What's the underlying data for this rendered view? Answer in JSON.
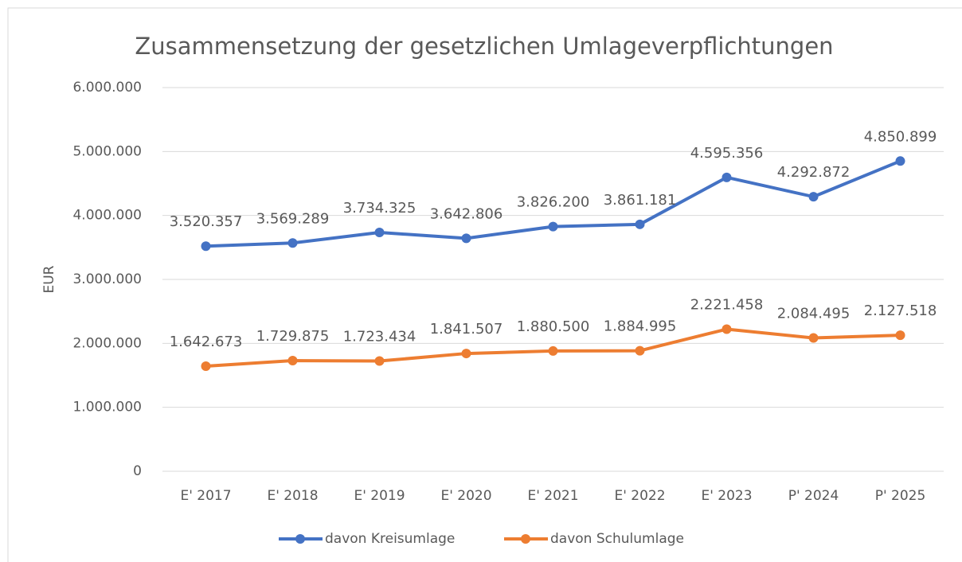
{
  "chart_data": {
    "type": "line",
    "title": "Zusammensetzung der gesetzlichen Umlageverpflichtungen",
    "y_label": "EUR",
    "categories": [
      "E' 2017",
      "E' 2018",
      "E' 2019",
      "E' 2020",
      "E' 2021",
      "E' 2022",
      "E' 2023",
      "P' 2024",
      "P' 2025"
    ],
    "series": [
      {
        "name": "davon Kreisumlage",
        "color": "#4472c4",
        "values": [
          3520357,
          3569289,
          3734325,
          3642806,
          3826200,
          3861181,
          4595356,
          4292872,
          4850899
        ],
        "value_labels": [
          "3.520.357",
          "3.569.289",
          "3.734.325",
          "3.642.806",
          "3.826.200",
          "3.861.181",
          "4.595.356",
          "4.292.872",
          "4.850.899"
        ]
      },
      {
        "name": "davon Schulumlage",
        "color": "#ed7d31",
        "values": [
          1642673,
          1729875,
          1723434,
          1841507,
          1880500,
          1884995,
          2221458,
          2084495,
          2127518
        ],
        "value_labels": [
          "1.642.673",
          "1.729.875",
          "1.723.434",
          "1.841.507",
          "1.880.500",
          "1.884.995",
          "2.221.458",
          "2.084.495",
          "2.127.518"
        ]
      }
    ],
    "ylim": [
      0,
      6000000
    ],
    "yticks": [
      0,
      {
        "value": 1000000,
        "label": "1.000.000"
      },
      {
        "value": 2000000,
        "label": "2.000.000"
      },
      {
        "value": 3000000,
        "label": "3.000.000"
      },
      {
        "value": 4000000,
        "label": "4.000.000"
      },
      {
        "value": 5000000,
        "label": "5.000.000"
      },
      {
        "value": 6000000,
        "label": "6.000.000"
      }
    ],
    "grid": true,
    "legend": "bottom"
  }
}
